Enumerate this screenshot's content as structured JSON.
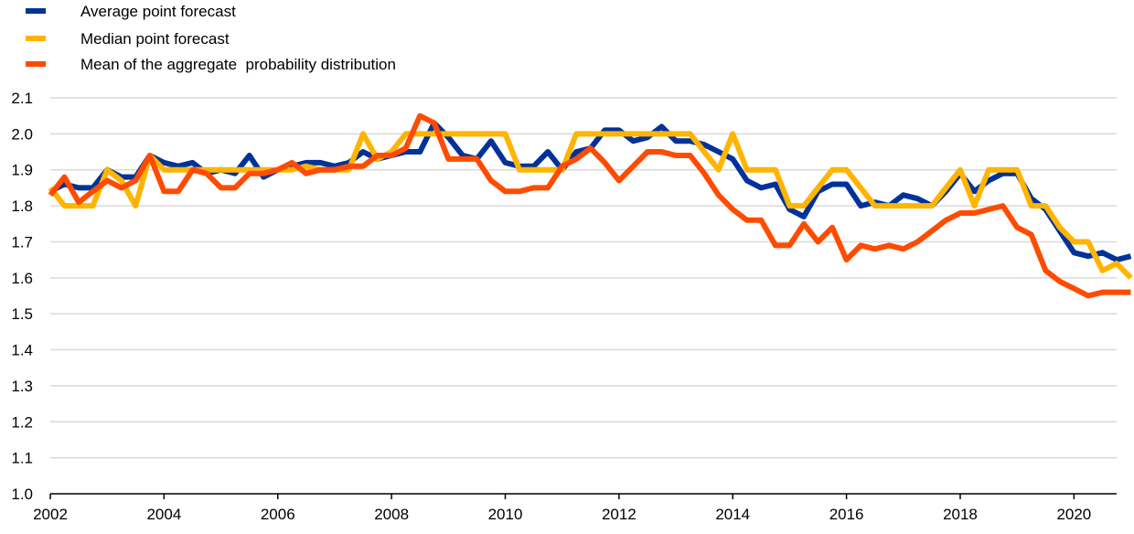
{
  "chart_data": {
    "type": "line",
    "title": "",
    "xlabel": "",
    "ylabel": "",
    "xlim": [
      2002,
      2020.75
    ],
    "ylim": [
      1.0,
      2.1
    ],
    "x_ticks": [
      "2002",
      "2004",
      "2006",
      "2008",
      "2010",
      "2012",
      "2014",
      "2016",
      "2018",
      "2020"
    ],
    "y_ticks": [
      "1.0",
      "1.1",
      "1.2",
      "1.3",
      "1.4",
      "1.5",
      "1.6",
      "1.7",
      "1.8",
      "1.9",
      "2.0",
      "2.1"
    ],
    "grid": "horizontal",
    "legend_position": "top-left",
    "x_start": 2002,
    "x_step": 0.25,
    "series": [
      {
        "name": "Average point forecast",
        "color": "#003299",
        "values": [
          1.84,
          1.86,
          1.85,
          1.85,
          1.9,
          1.88,
          1.88,
          1.94,
          1.92,
          1.91,
          1.92,
          1.89,
          1.9,
          1.89,
          1.94,
          1.88,
          1.9,
          1.91,
          1.92,
          1.92,
          1.91,
          1.92,
          1.95,
          1.93,
          1.94,
          1.95,
          1.95,
          2.03,
          1.99,
          1.94,
          1.93,
          1.98,
          1.92,
          1.91,
          1.91,
          1.95,
          1.9,
          1.95,
          1.96,
          2.01,
          2.01,
          1.98,
          1.99,
          2.02,
          1.98,
          1.98,
          1.97,
          1.95,
          1.93,
          1.87,
          1.85,
          1.86,
          1.79,
          1.77,
          1.84,
          1.86,
          1.86,
          1.8,
          1.81,
          1.8,
          1.83,
          1.82,
          1.8,
          1.84,
          1.89,
          1.84,
          1.87,
          1.89,
          1.89,
          1.82,
          1.79,
          1.73,
          1.67,
          1.66,
          1.67,
          1.65,
          1.66
        ]
      },
      {
        "name": "Median point forecast",
        "color": "#FFB400",
        "values": [
          1.85,
          1.8,
          1.8,
          1.8,
          1.9,
          1.87,
          1.8,
          1.94,
          1.9,
          1.9,
          1.9,
          1.9,
          1.9,
          1.9,
          1.9,
          1.9,
          1.9,
          1.9,
          1.91,
          1.9,
          1.9,
          1.9,
          2.0,
          1.93,
          1.95,
          2.0,
          2.0,
          2.0,
          2.0,
          2.0,
          2.0,
          2.0,
          2.0,
          1.9,
          1.9,
          1.9,
          1.9,
          2.0,
          2.0,
          2.0,
          2.0,
          2.0,
          2.0,
          2.0,
          2.0,
          2.0,
          1.95,
          1.9,
          2.0,
          1.9,
          1.9,
          1.9,
          1.8,
          1.8,
          1.85,
          1.9,
          1.9,
          1.85,
          1.8,
          1.8,
          1.8,
          1.8,
          1.8,
          1.85,
          1.9,
          1.8,
          1.9,
          1.9,
          1.9,
          1.8,
          1.8,
          1.74,
          1.7,
          1.7,
          1.62,
          1.64,
          1.6
        ]
      },
      {
        "name": "Mean of the aggregate  probability distribution",
        "color": "#FF4B00",
        "values": [
          1.83,
          1.88,
          1.81,
          1.84,
          1.87,
          1.85,
          1.87,
          1.94,
          1.84,
          1.84,
          1.9,
          1.89,
          1.85,
          1.85,
          1.89,
          1.89,
          1.9,
          1.92,
          1.89,
          1.9,
          1.9,
          1.91,
          1.91,
          1.94,
          1.94,
          1.96,
          2.05,
          2.03,
          1.93,
          1.93,
          1.93,
          1.87,
          1.84,
          1.84,
          1.85,
          1.85,
          1.91,
          1.93,
          1.96,
          1.92,
          1.87,
          1.91,
          1.95,
          1.95,
          1.94,
          1.94,
          1.89,
          1.83,
          1.79,
          1.76,
          1.76,
          1.69,
          1.69,
          1.75,
          1.7,
          1.74,
          1.65,
          1.69,
          1.68,
          1.69,
          1.68,
          1.7,
          1.73,
          1.76,
          1.78,
          1.78,
          1.79,
          1.8,
          1.74,
          1.72,
          1.62,
          1.59,
          1.57,
          1.55,
          1.56,
          1.56,
          1.56
        ]
      }
    ]
  }
}
